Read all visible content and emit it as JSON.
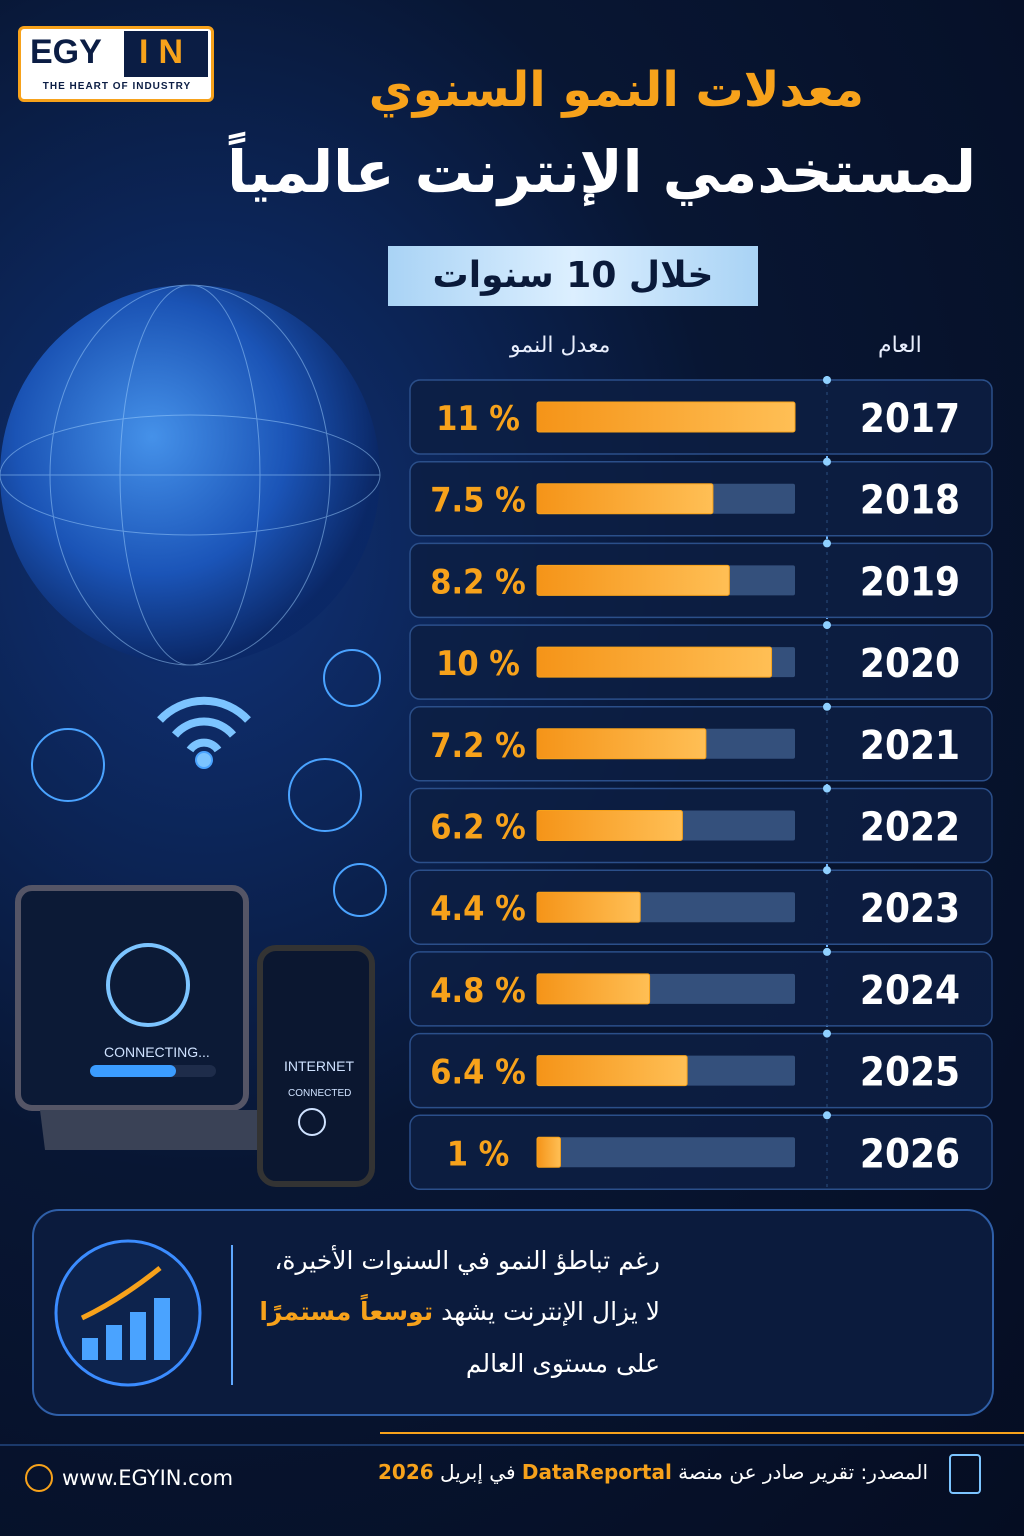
{
  "logo": {
    "name": "EGY",
    "highlight": "IN",
    "tagline": "THE HEART OF INDUSTRY"
  },
  "chart_data": {
    "type": "hbar",
    "title": "معدلات النمو السنوي",
    "subtitle": "لمستخدمي الإنترنت عالمياً",
    "period": "خلال 10 سنوات",
    "category_header": "العام",
    "value_header": "معدل النمو",
    "categories": [
      "2017",
      "2018",
      "2019",
      "2020",
      "2021",
      "2022",
      "2023",
      "2024",
      "2025",
      "2026"
    ],
    "values": [
      11,
      7.5,
      8.2,
      10,
      7.2,
      6.2,
      4.4,
      4.8,
      6.4,
      1
    ],
    "value_labels": [
      "11 %",
      "7.5 %",
      "8.2 %",
      "10 %",
      "7.2 %",
      "6.2 %",
      "4.4 %",
      "4.8 %",
      "6.4 %",
      "1 %"
    ],
    "xlim": [
      0,
      11
    ],
    "color": "#f7a21b",
    "track_color": "#34507c"
  },
  "illustration": {
    "laptop": "CONNECTING...",
    "phone_title": "INTERNET",
    "phone_status": "CONNECTED"
  },
  "note": {
    "line1": "رغم تباطؤ النمو في السنوات الأخيرة،",
    "line2": "لا يزال الإنترنت يشهد ",
    "line2_highlight": "توسعاً مستمرًا",
    "line3": "على مستوى العالم"
  },
  "footer": {
    "source_prefix": "المصدر: تقرير صادر عن منصة ",
    "source_platform": "DataReportal",
    "source_middle": " في إبريل ",
    "source_year": "2026",
    "website": "www.EGYIN.com"
  }
}
